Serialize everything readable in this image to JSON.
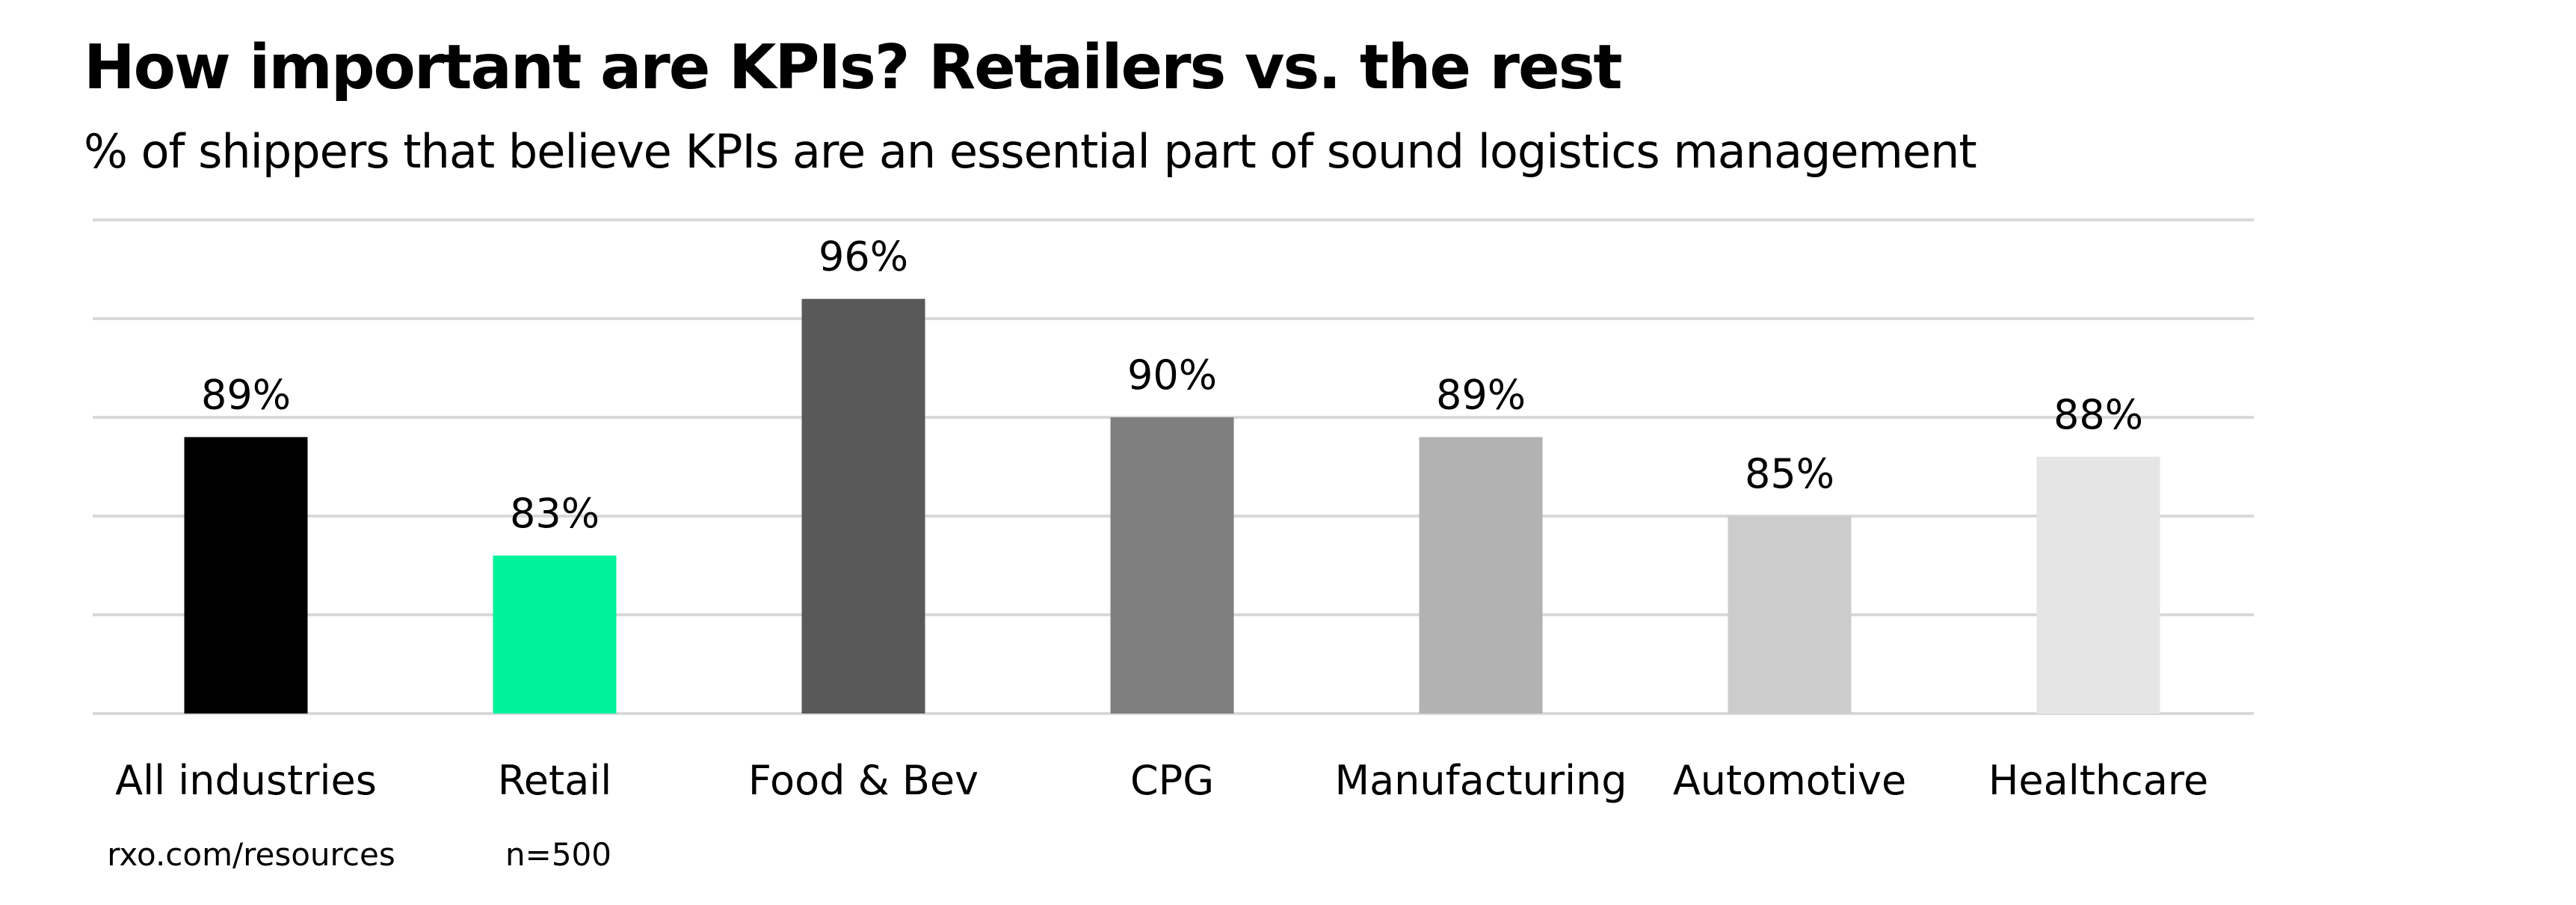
{
  "header": {
    "title": "How important are KPIs? Retailers vs. the rest",
    "subtitle": "% of shippers that believe KPIs are an essential part of sound logistics management"
  },
  "footer": {
    "source": "rxo.com/resources",
    "sample": "n=500"
  },
  "chart_data": {
    "type": "bar",
    "title": "How important are KPIs? Retailers vs. the rest",
    "subtitle": "% of shippers that believe KPIs are an essential part of sound logistics management",
    "categories": [
      "All industries",
      "Retail",
      "Food & Bev",
      "CPG",
      "Manufacturing",
      "Automotive",
      "Healthcare"
    ],
    "values": [
      89,
      83,
      96,
      90,
      89,
      85,
      88
    ],
    "data_labels": [
      "89%",
      "83%",
      "96%",
      "90%",
      "89%",
      "85%",
      "88%"
    ],
    "colors": [
      "#000000",
      "#00F29B",
      "#595959",
      "#7F7F7F",
      "#B2B2B2",
      "#CCCCCC",
      "#E5E5E5"
    ],
    "gridline_color": "#D9D9D9",
    "xlabel": "",
    "ylabel": "",
    "ylim": [
      75,
      100
    ],
    "ytick_step": 5,
    "ytick_labels_visible": false,
    "grid": true,
    "legend": "none"
  }
}
